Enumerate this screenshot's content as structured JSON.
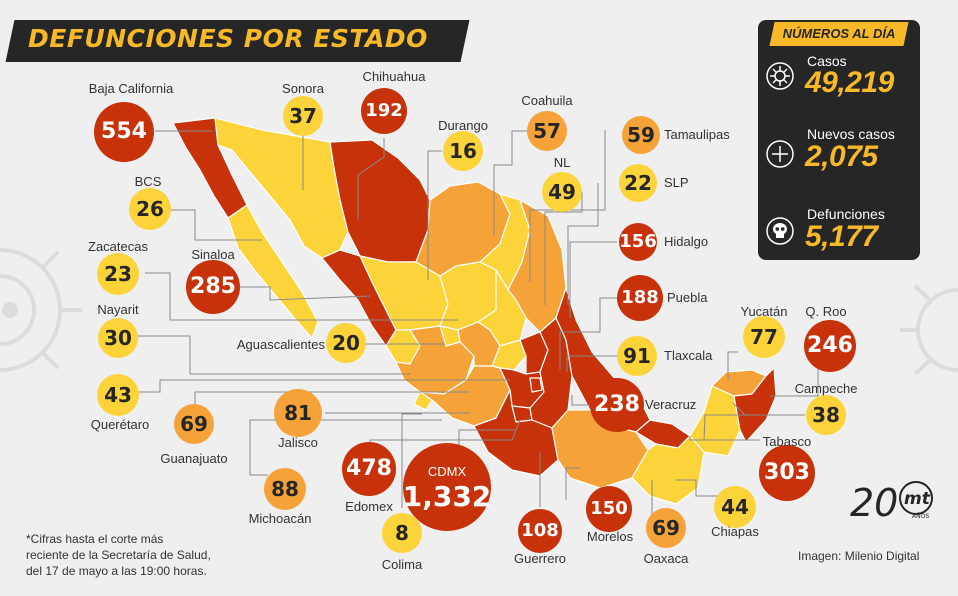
{
  "title": "DEFUNCIONES POR ESTADO",
  "summary": {
    "heading": "NÚMEROS AL DÍA",
    "stats": [
      {
        "label": "Casos",
        "value": "49,219",
        "icon": "virus-icon"
      },
      {
        "label": "Nuevos casos",
        "value": "2,075",
        "icon": "plus-circle-icon"
      },
      {
        "label": "Defunciones",
        "value": "5,177",
        "icon": "skull-icon"
      }
    ]
  },
  "footnote": [
    "*Cifras hasta el corte más",
    "reciente de la Secretaría de Salud,",
    "del 17 de mayo a las 19:00 horas."
  ],
  "credit": "Imagen: Milenio Digital",
  "logo": {
    "number": "20",
    "brand": "mt",
    "subtitle": "AÑOS"
  },
  "colors": {
    "high": "#c8320a",
    "medium": "#f5a339",
    "low": "#fdd33a",
    "dark": "#262626"
  },
  "states": [
    {
      "name": "Baja California",
      "value": "554",
      "level": "high"
    },
    {
      "name": "Sonora",
      "value": "37",
      "level": "low"
    },
    {
      "name": "Chihuahua",
      "value": "192",
      "level": "high"
    },
    {
      "name": "Durango",
      "value": "16",
      "level": "low"
    },
    {
      "name": "Coahuila",
      "value": "57",
      "level": "medium"
    },
    {
      "name": "Tamaulipas",
      "value": "59",
      "level": "medium"
    },
    {
      "name": "NL",
      "value": "49",
      "level": "low"
    },
    {
      "name": "SLP",
      "value": "22",
      "level": "low"
    },
    {
      "name": "Hidalgo",
      "value": "156",
      "level": "high"
    },
    {
      "name": "Puebla",
      "value": "188",
      "level": "high"
    },
    {
      "name": "Tlaxcala",
      "value": "91",
      "level": "low"
    },
    {
      "name": "Yucatán",
      "value": "77",
      "level": "low"
    },
    {
      "name": "Q. Roo",
      "value": "246",
      "level": "high"
    },
    {
      "name": "Campeche",
      "value": "38",
      "level": "low"
    },
    {
      "name": "Tabasco",
      "value": "303",
      "level": "high"
    },
    {
      "name": "Veracruz",
      "value": "238",
      "level": "high"
    },
    {
      "name": "Chiapas",
      "value": "44",
      "level": "low"
    },
    {
      "name": "Oaxaca",
      "value": "69",
      "level": "medium"
    },
    {
      "name": "Morelos",
      "value": "150",
      "level": "high"
    },
    {
      "name": "Guerrero",
      "value": "108",
      "level": "high"
    },
    {
      "name": "CDMX",
      "value": "1,332",
      "level": "high"
    },
    {
      "name": "Edomex",
      "value": "478",
      "level": "high"
    },
    {
      "name": "Colima",
      "value": "8",
      "level": "low"
    },
    {
      "name": "Michoacán",
      "value": "88",
      "level": "medium"
    },
    {
      "name": "Jalisco",
      "value": "81",
      "level": "medium"
    },
    {
      "name": "Guanajuato",
      "value": "69",
      "level": "medium"
    },
    {
      "name": "Querétaro",
      "value": "43",
      "level": "low"
    },
    {
      "name": "Nayarit",
      "value": "30",
      "level": "low"
    },
    {
      "name": "Aguascalientes",
      "value": "20",
      "level": "low"
    },
    {
      "name": "Zacatecas",
      "value": "23",
      "level": "low"
    },
    {
      "name": "Sinaloa",
      "value": "285",
      "level": "high"
    },
    {
      "name": "BCS",
      "value": "26",
      "level": "low"
    }
  ]
}
